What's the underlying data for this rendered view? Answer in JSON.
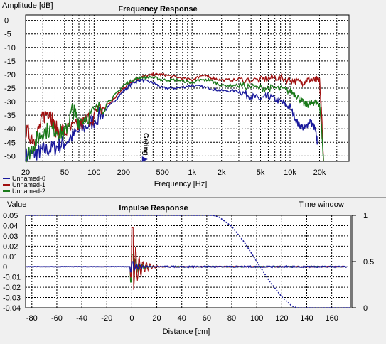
{
  "chart_data": [
    {
      "type": "line",
      "title": "Frequency Response",
      "ylabel": "Amplitude [dB]",
      "xlabel": "Frequency [Hz]",
      "xscale": "log",
      "xlim": [
        20,
        40000
      ],
      "ylim": [
        -52,
        2
      ],
      "grid": true,
      "yticks": [
        0,
        -5,
        -10,
        -15,
        -20,
        -25,
        -30,
        -35,
        -40,
        -45,
        -50
      ],
      "xticks": [
        {
          "v": 20,
          "label": "20"
        },
        {
          "v": 50,
          "label": "50"
        },
        {
          "v": 100,
          "label": "100"
        },
        {
          "v": 200,
          "label": "200"
        },
        {
          "v": 500,
          "label": "500"
        },
        {
          "v": 1000,
          "label": "1k"
        },
        {
          "v": 2000,
          "label": "2k"
        },
        {
          "v": 5000,
          "label": "5k"
        },
        {
          "v": 10000,
          "label": "10k"
        },
        {
          "v": 20000,
          "label": "20k"
        }
      ],
      "legend": "bottom-left",
      "annotation": {
        "text": "Gating",
        "x": 330
      },
      "series": [
        {
          "name": "Unnamed-0",
          "color": "#1a1a9c",
          "points": [
            [
              20,
              -50
            ],
            [
              25,
              -49
            ],
            [
              30,
              -48
            ],
            [
              40,
              -47
            ],
            [
              50,
              -45
            ],
            [
              70,
              -41
            ],
            [
              100,
              -37
            ],
            [
              150,
              -31
            ],
            [
              200,
              -26
            ],
            [
              250,
              -23
            ],
            [
              300,
              -22
            ],
            [
              400,
              -23
            ],
            [
              500,
              -25
            ],
            [
              700,
              -25
            ],
            [
              1000,
              -24
            ],
            [
              1500,
              -25
            ],
            [
              2000,
              -26
            ],
            [
              3000,
              -26
            ],
            [
              4000,
              -28
            ],
            [
              5000,
              -29
            ],
            [
              6000,
              -28
            ],
            [
              8000,
              -30
            ],
            [
              10000,
              -32
            ],
            [
              12000,
              -38
            ],
            [
              14000,
              -40
            ],
            [
              16000,
              -37
            ],
            [
              18000,
              -40
            ],
            [
              19000,
              -45
            ]
          ]
        },
        {
          "name": "Unnamed-1",
          "color": "#a01010",
          "points": [
            [
              20,
              -41
            ],
            [
              25,
              -44
            ],
            [
              30,
              -36
            ],
            [
              35,
              -33
            ],
            [
              40,
              -40
            ],
            [
              50,
              -41
            ],
            [
              70,
              -39
            ],
            [
              100,
              -35
            ],
            [
              150,
              -30
            ],
            [
              200,
              -25
            ],
            [
              250,
              -22
            ],
            [
              300,
              -21
            ],
            [
              400,
              -20
            ],
            [
              500,
              -20
            ],
            [
              700,
              -21
            ],
            [
              1000,
              -22
            ],
            [
              1300,
              -20
            ],
            [
              1500,
              -21
            ],
            [
              2000,
              -22
            ],
            [
              3000,
              -22
            ],
            [
              5000,
              -22
            ],
            [
              7000,
              -21
            ],
            [
              10000,
              -22
            ],
            [
              13000,
              -23
            ],
            [
              15000,
              -22
            ],
            [
              18000,
              -22
            ],
            [
              20000,
              -22
            ],
            [
              21000,
              -35
            ],
            [
              22000,
              -52
            ]
          ]
        },
        {
          "name": "Unnamed-2",
          "color": "#1a7a1a",
          "points": [
            [
              20,
              -51
            ],
            [
              25,
              -45
            ],
            [
              30,
              -41
            ],
            [
              40,
              -40
            ],
            [
              50,
              -42
            ],
            [
              60,
              -33
            ],
            [
              70,
              -37
            ],
            [
              100,
              -34
            ],
            [
              150,
              -29
            ],
            [
              200,
              -24
            ],
            [
              250,
              -22
            ],
            [
              300,
              -21
            ],
            [
              400,
              -21
            ],
            [
              500,
              -22
            ],
            [
              700,
              -22
            ],
            [
              1000,
              -23
            ],
            [
              1200,
              -22
            ],
            [
              1500,
              -22
            ],
            [
              2000,
              -24
            ],
            [
              3000,
              -24
            ],
            [
              5000,
              -25
            ],
            [
              7000,
              -25
            ],
            [
              10000,
              -26
            ],
            [
              12000,
              -28
            ],
            [
              14000,
              -31
            ],
            [
              16000,
              -31
            ],
            [
              18000,
              -30
            ],
            [
              20000,
              -31
            ],
            [
              21000,
              -40
            ],
            [
              22000,
              -52
            ]
          ]
        }
      ]
    },
    {
      "type": "line",
      "title": "Impulse Response",
      "ylabel": "Value",
      "xlabel": "Distance [cm]",
      "y2label": "Time window",
      "xlim": [
        -85,
        175
      ],
      "ylim": [
        -0.04,
        0.05
      ],
      "y2lim": [
        0,
        1
      ],
      "grid": true,
      "yticks": [
        {
          "v": 0.05,
          "label": "0.05"
        },
        {
          "v": 0.04,
          "label": "0.04"
        },
        {
          "v": 0.03,
          "label": "0.03"
        },
        {
          "v": 0.02,
          "label": "0.02"
        },
        {
          "v": 0.01,
          "label": "0.01"
        },
        {
          "v": 0,
          "label": "0"
        },
        {
          "v": -0.01,
          "label": "-0.01"
        },
        {
          "v": -0.02,
          "label": "-0.02"
        },
        {
          "v": -0.03,
          "label": "-0.03"
        },
        {
          "v": -0.04,
          "label": "-0.04"
        }
      ],
      "y2ticks": [
        {
          "v": 1,
          "label": "1"
        },
        {
          "v": 0.5,
          "label": "0.5"
        },
        {
          "v": 0,
          "label": "0"
        }
      ],
      "xticks": [
        -80,
        -60,
        -40,
        -20,
        0,
        20,
        40,
        60,
        80,
        100,
        120,
        140,
        160
      ],
      "window": {
        "color": "#1a1a9c",
        "points": [
          [
            -85,
            1
          ],
          [
            65,
            1
          ],
          [
            70,
            0.98
          ],
          [
            80,
            0.88
          ],
          [
            90,
            0.71
          ],
          [
            100,
            0.5
          ],
          [
            110,
            0.29
          ],
          [
            120,
            0.12
          ],
          [
            128,
            0.02
          ],
          [
            132,
            0
          ],
          [
            175,
            0
          ]
        ]
      },
      "series": [
        {
          "name": "Unnamed-0",
          "color": "#1a1a9c"
        },
        {
          "name": "Unnamed-1",
          "color": "#a01010"
        },
        {
          "name": "Unnamed-2",
          "color": "#1a7a1a"
        }
      ]
    }
  ]
}
